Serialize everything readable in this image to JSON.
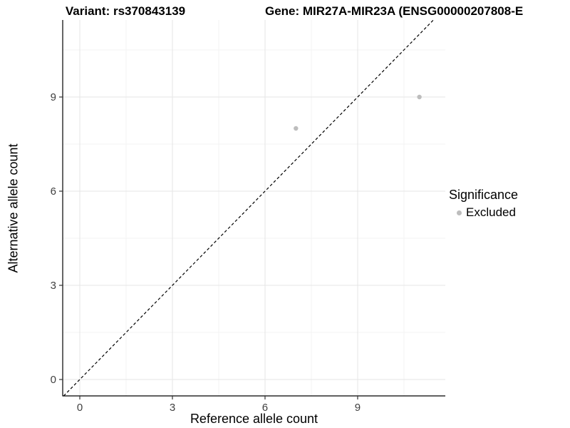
{
  "chart_data": {
    "type": "scatter",
    "title_left": "Variant: rs370843139",
    "title_right": "Gene: MIR27A-MIR23A (ENSG00000207808-E",
    "xlabel": "Reference allele count",
    "ylabel": "Alternative allele count",
    "xticks": [
      0,
      3,
      6,
      9
    ],
    "yticks": [
      0,
      3,
      6,
      9
    ],
    "xlim": [
      -0.55,
      11.85
    ],
    "ylim": [
      -0.55,
      11.45
    ],
    "grid": true,
    "identity_line": {
      "type": "abline",
      "slope": 1,
      "intercept": 0,
      "style": "dashed",
      "color": "#000000"
    },
    "points": [
      {
        "x": 7,
        "y": 8,
        "series": "Excluded"
      },
      {
        "x": 11,
        "y": 9,
        "series": "Excluded"
      }
    ],
    "point_color": "#bdbdbd",
    "legend": {
      "position": "right",
      "title": "Significance",
      "entries": [
        {
          "label": "Excluded",
          "color": "#bdbdbd"
        }
      ]
    },
    "colors": {
      "grid_major": "#e5e5e5",
      "grid_minor": "#f3f3f3",
      "axis": "#000000",
      "tick_text": "#404040"
    }
  }
}
